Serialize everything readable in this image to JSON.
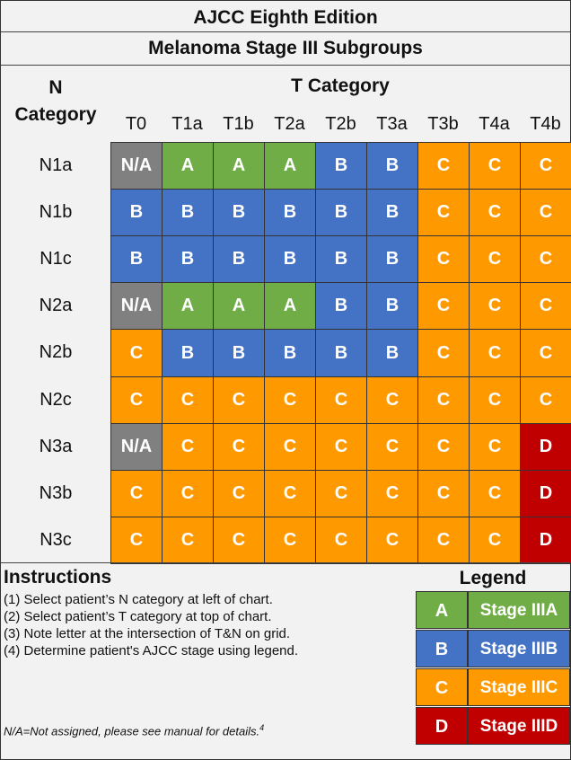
{
  "title": {
    "line1": "AJCC Eighth Edition",
    "line2": "Melanoma Stage III Subgroups"
  },
  "n_category_header": {
    "line1": "N",
    "line2": "Category"
  },
  "t_category_header": "T Category",
  "t_columns": [
    "T0",
    "T1a",
    "T1b",
    "T2a",
    "T2b",
    "T3a",
    "T3b",
    "T4a",
    "T4b"
  ],
  "n_rows": [
    "N1a",
    "N1b",
    "N1c",
    "N2a",
    "N2b",
    "N2c",
    "N3a",
    "N3b",
    "N3c"
  ],
  "grid": [
    [
      "N/A",
      "A",
      "A",
      "A",
      "B",
      "B",
      "C",
      "C",
      "C"
    ],
    [
      "B",
      "B",
      "B",
      "B",
      "B",
      "B",
      "C",
      "C",
      "C"
    ],
    [
      "B",
      "B",
      "B",
      "B",
      "B",
      "B",
      "C",
      "C",
      "C"
    ],
    [
      "N/A",
      "A",
      "A",
      "A",
      "B",
      "B",
      "C",
      "C",
      "C"
    ],
    [
      "C",
      "B",
      "B",
      "B",
      "B",
      "B",
      "C",
      "C",
      "C"
    ],
    [
      "C",
      "C",
      "C",
      "C",
      "C",
      "C",
      "C",
      "C",
      "C"
    ],
    [
      "N/A",
      "C",
      "C",
      "C",
      "C",
      "C",
      "C",
      "C",
      "D"
    ],
    [
      "C",
      "C",
      "C",
      "C",
      "C",
      "C",
      "C",
      "C",
      "D"
    ],
    [
      "C",
      "C",
      "C",
      "C",
      "C",
      "C",
      "C",
      "C",
      "D"
    ]
  ],
  "colors": {
    "A": "#70ad47",
    "B": "#4472c4",
    "C": "#ff9900",
    "D": "#c00000",
    "N/A": "#808080"
  },
  "instructions": {
    "title": "Instructions",
    "lines": [
      "(1) Select patient’s N category at left of chart.",
      "(2) Select patient’s T category at top of chart.",
      "(3) Note letter at the intersection of T&N on grid.",
      "(4) Determine patient's AJCC stage using legend."
    ]
  },
  "footnote": {
    "text": "N/A=Not assigned, please see manual for details.",
    "superscript": "4"
  },
  "legend": {
    "title": "Legend",
    "items": [
      {
        "letter": "A",
        "label": "Stage IIIA"
      },
      {
        "letter": "B",
        "label": "Stage IIIB"
      },
      {
        "letter": "C",
        "label": "Stage IIIC"
      },
      {
        "letter": "D",
        "label": "Stage IIID"
      }
    ]
  }
}
